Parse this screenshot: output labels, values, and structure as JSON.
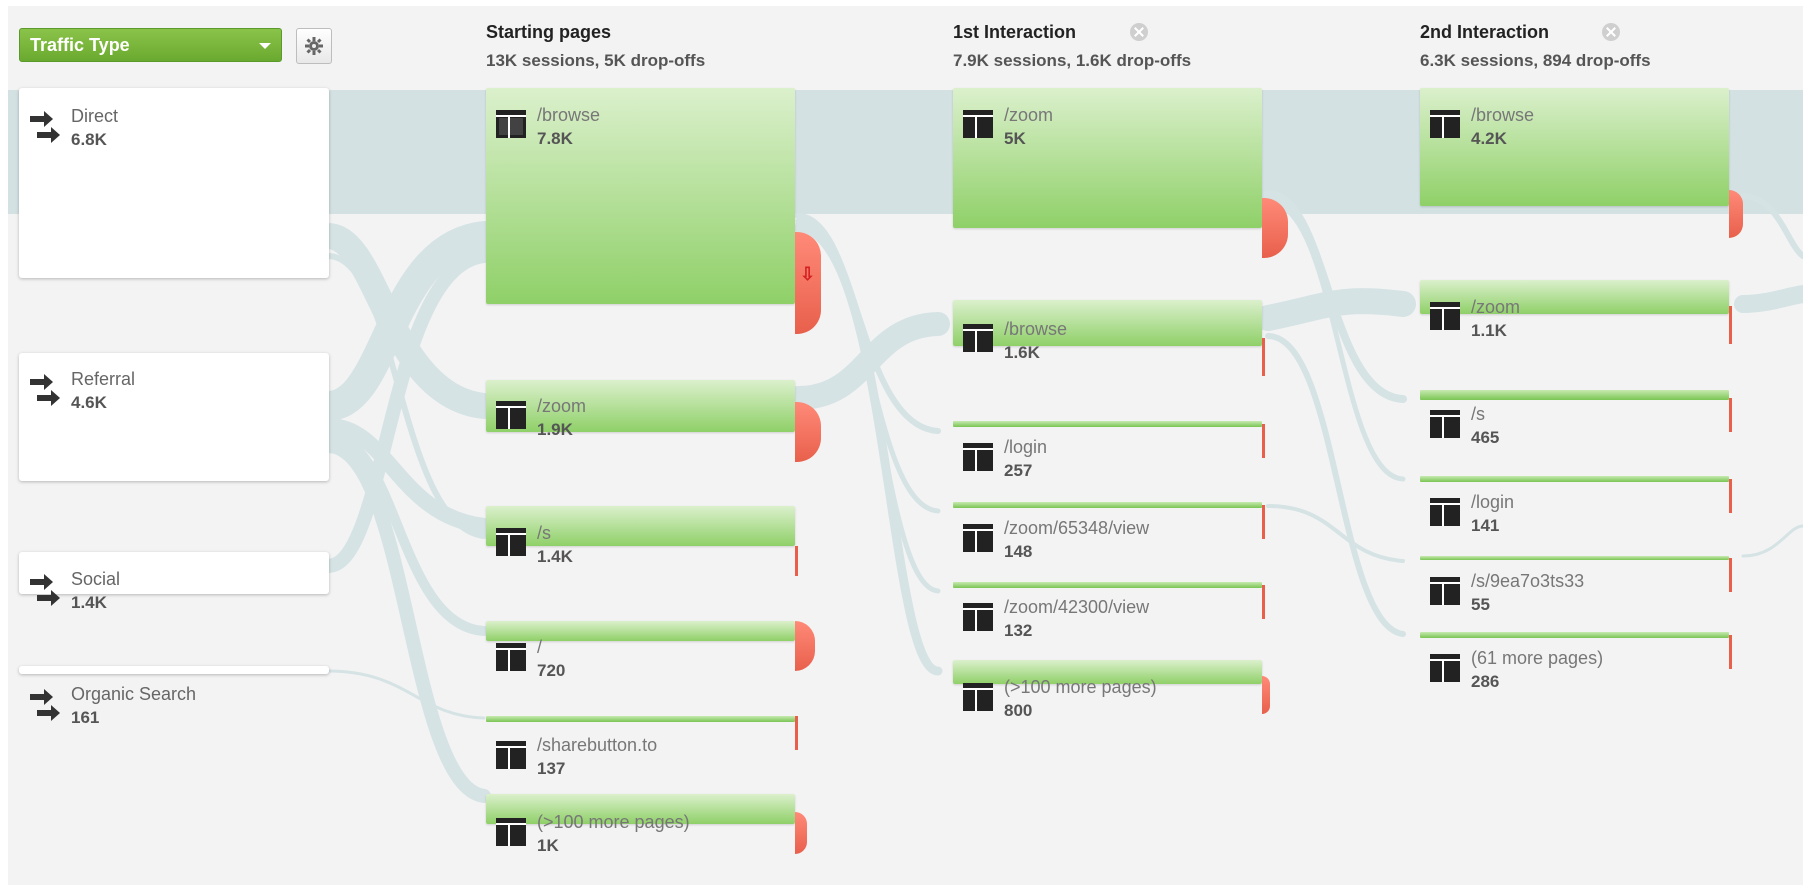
{
  "controls": {
    "traffic_type_label": "Traffic Type"
  },
  "columns": [
    {
      "title": "Starting pages",
      "subtitle": "13K sessions, 5K drop-offs"
    },
    {
      "title": "1st Interaction",
      "subtitle": "7.9K sessions, 1.6K drop-offs"
    },
    {
      "title": "2nd Interaction",
      "subtitle": "6.3K sessions, 894 drop-offs"
    }
  ],
  "sources": [
    {
      "label": "Direct",
      "value": "6.8K"
    },
    {
      "label": "Referral",
      "value": "4.6K"
    },
    {
      "label": "Social",
      "value": "1.4K"
    },
    {
      "label": "Organic Search",
      "value": "161"
    }
  ],
  "starting_pages": [
    {
      "label": "/browse",
      "value": "7.8K"
    },
    {
      "label": "/zoom",
      "value": "1.9K"
    },
    {
      "label": "/s",
      "value": "1.4K"
    },
    {
      "label": "/",
      "value": "720"
    },
    {
      "label": "/sharebutton.to",
      "value": "137"
    },
    {
      "label": "(>100 more pages)",
      "value": "1K"
    }
  ],
  "first_interaction": [
    {
      "label": "/zoom",
      "value": "5K"
    },
    {
      "label": "/browse",
      "value": "1.6K"
    },
    {
      "label": "/login",
      "value": "257"
    },
    {
      "label": "/zoom/65348/view",
      "value": "148"
    },
    {
      "label": "/zoom/42300/view",
      "value": "132"
    },
    {
      "label": "(>100 more pages)",
      "value": "800"
    }
  ],
  "second_interaction": [
    {
      "label": "/browse",
      "value": "4.2K"
    },
    {
      "label": "/zoom",
      "value": "1.1K"
    },
    {
      "label": "/s",
      "value": "465"
    },
    {
      "label": "/login",
      "value": "141"
    },
    {
      "label": "/s/9ea7o3ts33",
      "value": "55"
    },
    {
      "label": "(61 more pages)",
      "value": "286"
    }
  ],
  "icons": {
    "settings": "gear-icon",
    "source": "traffic-arrow-icon",
    "page": "page-icon",
    "remove_column": "close-icon",
    "dropoff": "down-arrow-icon"
  },
  "colors": {
    "node_green": "#8fd068",
    "select_green": "#6aa92f",
    "dropoff_red": "#e8604c",
    "flow": "#d3e1e3",
    "background": "#f3f3f3"
  }
}
